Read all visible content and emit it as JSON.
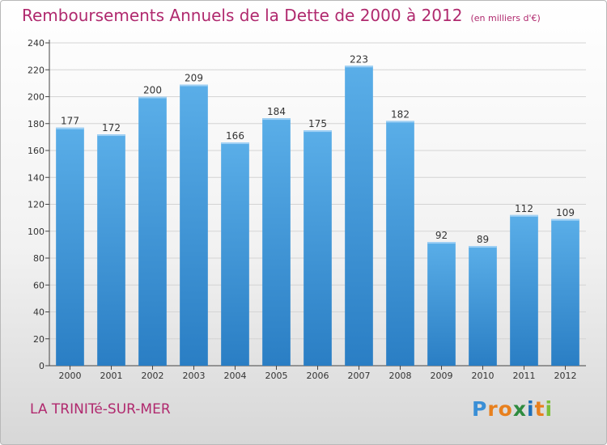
{
  "title": "Remboursements Annuels de la Dette de 2000 à 2012",
  "unit": "(en milliers d'€)",
  "location": "LA TRINITé-SUR-MER",
  "logo": {
    "text": "Proxiti",
    "letter_colors": [
      "#3a8fd6",
      "#e8801e",
      "#e8801e",
      "#2e8b3f",
      "#1f6fb8",
      "#e8801e",
      "#7bbf3a"
    ]
  },
  "colors": {
    "title": "#b0296e",
    "bar_light": "#5aaee8",
    "bar_dark": "#2a7ec4",
    "grid": "#d4d4d4"
  },
  "chart_data": {
    "type": "bar",
    "categories": [
      "2000",
      "2001",
      "2002",
      "2003",
      "2004",
      "2005",
      "2006",
      "2007",
      "2008",
      "2009",
      "2010",
      "2011",
      "2012"
    ],
    "values": [
      177,
      172,
      200,
      209,
      166,
      184,
      175,
      223,
      182,
      92,
      89,
      112,
      109
    ],
    "title": "Remboursements Annuels de la Dette de 2000 à 2012",
    "unit": "(en milliers d'€)",
    "ylim": [
      0,
      240
    ],
    "yticks": [
      0,
      20,
      40,
      60,
      80,
      100,
      120,
      140,
      160,
      180,
      200,
      220,
      240
    ],
    "grid": true,
    "data_labels": true
  }
}
